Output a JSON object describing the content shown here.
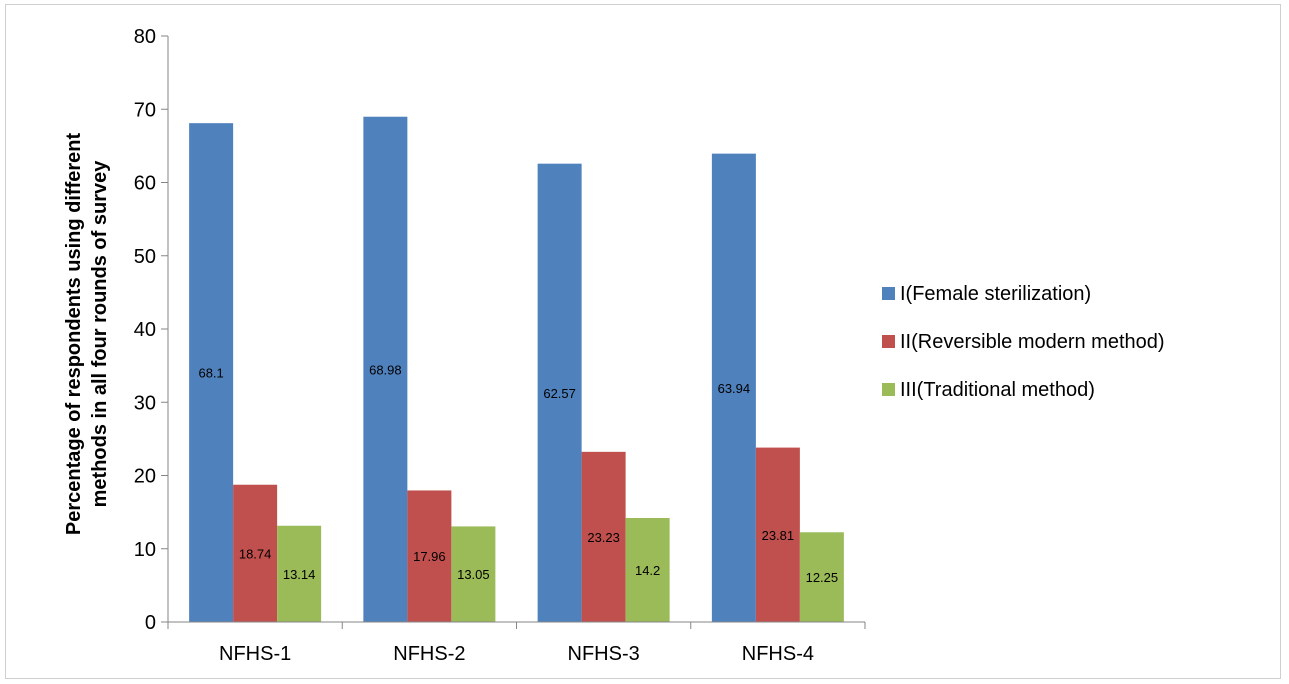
{
  "chart_data": {
    "type": "bar",
    "categories": [
      "NFHS-1",
      "NFHS-2",
      "NFHS-3",
      "NFHS-4"
    ],
    "series": [
      {
        "name": "I(Female sterilization)",
        "values": [
          68.1,
          68.98,
          62.57,
          63.94
        ],
        "color": "#4f81bd"
      },
      {
        "name": "II(Reversible modern method)",
        "values": [
          18.74,
          17.96,
          23.23,
          23.81
        ],
        "color": "#c0504d"
      },
      {
        "name": "III(Traditional method)",
        "values": [
          13.14,
          13.05,
          14.2,
          12.25
        ],
        "color": "#9bbb59"
      }
    ],
    "title": "",
    "xlabel": "",
    "ylabel_lines": [
      "Percentage of respondents using different",
      "methods in all four rounds of survey"
    ],
    "ylim": [
      0,
      80
    ],
    "yticks": [
      0,
      10,
      20,
      30,
      40,
      50,
      60,
      70,
      80
    ],
    "grid": false,
    "legend": "right",
    "data_labels": true
  }
}
